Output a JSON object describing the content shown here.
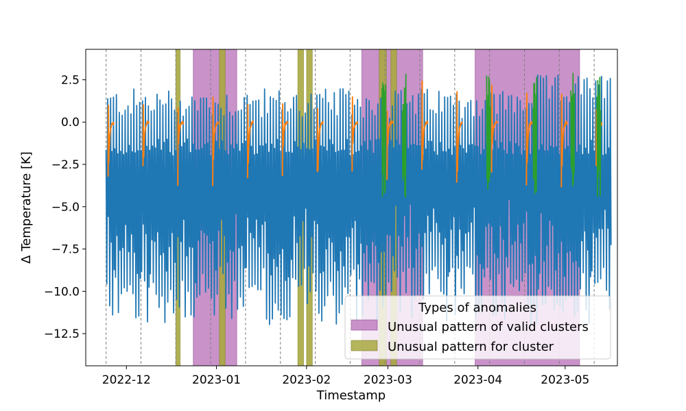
{
  "chart_data": {
    "type": "line",
    "title": "",
    "xlabel": "Timestamp",
    "ylabel": "Δ Temperature [K]",
    "x_range": [
      "2022-11-17",
      "2023-05-19"
    ],
    "ylim": [
      -14.4,
      4.3
    ],
    "x_ticks": [
      {
        "label": "2022-12",
        "date": "2022-12-01"
      },
      {
        "label": "2023-01",
        "date": "2023-01-01"
      },
      {
        "label": "2023-02",
        "date": "2023-02-01"
      },
      {
        "label": "2023-03",
        "date": "2023-03-01"
      },
      {
        "label": "2023-04",
        "date": "2023-04-01"
      },
      {
        "label": "2023-05",
        "date": "2023-05-01"
      }
    ],
    "y_ticks": [
      {
        "label": "2.5",
        "value": 2.5
      },
      {
        "label": "0.0",
        "value": 0.0
      },
      {
        "label": "−2.5",
        "value": -2.5
      },
      {
        "label": "−5.0",
        "value": -5.0
      },
      {
        "label": "−7.5",
        "value": -7.5
      },
      {
        "label": "−10.0",
        "value": -10.0
      },
      {
        "label": "−12.5",
        "value": -12.5
      }
    ],
    "series_colors": {
      "main": "#1f77b4",
      "recovery": "#ff7f0e",
      "alt": "#2ca02c"
    },
    "series_note": "Daily temperature cycles; main series (blue) oscillates between roughly -12 K and +2 K, orange recovery segments rise toward 0 K after each cycle, green segments in April-May",
    "start_date": "2022-11-24",
    "end_date": "2023-05-16",
    "cycle_markers": [
      "2022-11-24",
      "2022-12-06",
      "2022-12-18",
      "2022-12-30",
      "2023-01-11",
      "2023-01-23",
      "2023-02-04",
      "2023-02-16",
      "2023-02-28",
      "2023-03-12",
      "2023-03-24",
      "2023-04-05",
      "2023-04-17",
      "2023-04-29",
      "2023-05-11"
    ],
    "anomaly_ranges": [
      {
        "type": "valid_clusters",
        "start": "2022-12-24",
        "end": "2023-01-08"
      },
      {
        "type": "valid_clusters",
        "start": "2023-02-20",
        "end": "2023-03-13"
      },
      {
        "type": "valid_clusters",
        "start": "2023-03-31",
        "end": "2023-05-06"
      },
      {
        "type": "cluster",
        "start": "2022-12-18",
        "end": "2022-12-19.5"
      },
      {
        "type": "cluster",
        "start": "2023-01-02",
        "end": "2023-01-04"
      },
      {
        "type": "cluster",
        "start": "2023-01-29",
        "end": "2023-01-31"
      },
      {
        "type": "cluster",
        "start": "2023-02-01",
        "end": "2023-02-03"
      },
      {
        "type": "cluster",
        "start": "2023-02-26",
        "end": "2023-02-28.5"
      },
      {
        "type": "cluster",
        "start": "2023-03-02",
        "end": "2023-03-04"
      }
    ],
    "legend": {
      "title": "Types of anomalies",
      "position": "lower-right",
      "entries": [
        {
          "label": "Unusual pattern of valid clusters",
          "color": "#bf7fbf"
        },
        {
          "label": "Unusual pattern for cluster",
          "color": "#a8a840"
        }
      ]
    }
  }
}
